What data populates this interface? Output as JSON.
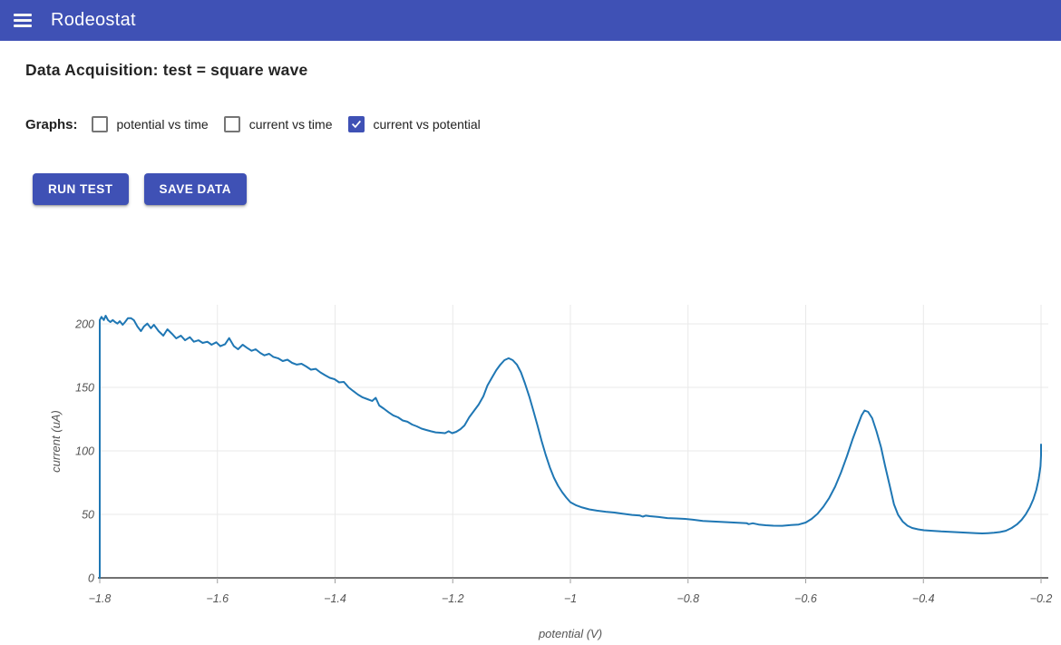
{
  "header": {
    "title": "Rodeostat",
    "menu_icon": "hamburger-menu-icon"
  },
  "page": {
    "heading": "Data Acquisition: test = square wave"
  },
  "graphs": {
    "label": "Graphs:",
    "options": [
      {
        "label": "potential vs time",
        "checked": false
      },
      {
        "label": "current vs time",
        "checked": false
      },
      {
        "label": "current vs potential",
        "checked": true
      }
    ]
  },
  "buttons": {
    "run_test": "RUN TEST",
    "save_data": "SAVE DATA"
  },
  "colors": {
    "primary": "#3f51b5",
    "line": "#1f77b4",
    "grid": "#e9e9e9",
    "axis": "#424242",
    "tick": "#9e9e9e",
    "tick_label": "#545454"
  },
  "chart_data": {
    "type": "line",
    "title": "",
    "xlabel": "potential (V)",
    "ylabel": "current (uA)",
    "xlim": [
      -1.8,
      -0.2
    ],
    "ylim": [
      0,
      215
    ],
    "grid": true,
    "legend": false,
    "x_ticks": [
      -1.8,
      -1.6,
      -1.4,
      -1.2,
      -1.0,
      -0.8,
      -0.6,
      -0.4,
      -0.2
    ],
    "x_tick_labels": [
      "−1.8",
      "−1.6",
      "−1.4",
      "−1.2",
      "−1",
      "−0.8",
      "−0.6",
      "−0.4",
      "−0.2"
    ],
    "y_ticks": [
      0,
      50,
      100,
      150,
      200
    ],
    "y_tick_labels": [
      "0",
      "50",
      "100",
      "150",
      "200"
    ],
    "series": [
      {
        "name": "current vs potential",
        "color": "#1f77b4",
        "points": [
          [
            -1.8,
            0
          ],
          [
            -1.8,
            203
          ],
          [
            -1.797,
            205.5
          ],
          [
            -1.793,
            203
          ],
          [
            -1.79,
            206.4
          ],
          [
            -1.786,
            202.9
          ],
          [
            -1.782,
            201.4
          ],
          [
            -1.778,
            203
          ],
          [
            -1.774,
            201.4
          ],
          [
            -1.77,
            200.2
          ],
          [
            -1.766,
            202.1
          ],
          [
            -1.761,
            199.3
          ],
          [
            -1.757,
            201.4
          ],
          [
            -1.752,
            204.5
          ],
          [
            -1.747,
            204.5
          ],
          [
            -1.742,
            202.9
          ],
          [
            -1.736,
            197.9
          ],
          [
            -1.73,
            194.3
          ],
          [
            -1.725,
            197.9
          ],
          [
            -1.719,
            200.2
          ],
          [
            -1.713,
            196.6
          ],
          [
            -1.708,
            199.3
          ],
          [
            -1.7,
            194.3
          ],
          [
            -1.692,
            190.7
          ],
          [
            -1.685,
            195.7
          ],
          [
            -1.677,
            192.1
          ],
          [
            -1.67,
            188.6
          ],
          [
            -1.662,
            190.7
          ],
          [
            -1.655,
            187.1
          ],
          [
            -1.647,
            189.5
          ],
          [
            -1.64,
            185.9
          ],
          [
            -1.632,
            187.1
          ],
          [
            -1.625,
            185.0
          ],
          [
            -1.617,
            185.9
          ],
          [
            -1.61,
            183.6
          ],
          [
            -1.602,
            185.5
          ],
          [
            -1.595,
            182.4
          ],
          [
            -1.587,
            184.0
          ],
          [
            -1.58,
            188.8
          ],
          [
            -1.572,
            182.4
          ],
          [
            -1.565,
            180.0
          ],
          [
            -1.557,
            183.6
          ],
          [
            -1.55,
            181.2
          ],
          [
            -1.542,
            178.8
          ],
          [
            -1.535,
            180.0
          ],
          [
            -1.527,
            177.1
          ],
          [
            -1.52,
            175.2
          ],
          [
            -1.512,
            176.4
          ],
          [
            -1.505,
            174.0
          ],
          [
            -1.497,
            172.9
          ],
          [
            -1.489,
            170.7
          ],
          [
            -1.481,
            171.8
          ],
          [
            -1.473,
            169.3
          ],
          [
            -1.465,
            167.9
          ],
          [
            -1.457,
            168.6
          ],
          [
            -1.449,
            166.4
          ],
          [
            -1.441,
            163.9
          ],
          [
            -1.433,
            164.6
          ],
          [
            -1.425,
            161.8
          ],
          [
            -1.417,
            159.6
          ],
          [
            -1.409,
            157.5
          ],
          [
            -1.401,
            156.4
          ],
          [
            -1.393,
            153.9
          ],
          [
            -1.385,
            154.3
          ],
          [
            -1.377,
            150.0
          ],
          [
            -1.369,
            147.1
          ],
          [
            -1.361,
            144.3
          ],
          [
            -1.353,
            142.1
          ],
          [
            -1.345,
            140.7
          ],
          [
            -1.337,
            139.3
          ],
          [
            -1.331,
            141.8
          ],
          [
            -1.325,
            135.7
          ],
          [
            -1.317,
            133.2
          ],
          [
            -1.309,
            130.4
          ],
          [
            -1.301,
            127.9
          ],
          [
            -1.293,
            126.4
          ],
          [
            -1.285,
            123.9
          ],
          [
            -1.277,
            122.9
          ],
          [
            -1.269,
            120.7
          ],
          [
            -1.261,
            119.3
          ],
          [
            -1.253,
            117.5
          ],
          [
            -1.245,
            116.4
          ],
          [
            -1.237,
            115.4
          ],
          [
            -1.229,
            114.6
          ],
          [
            -1.221,
            114.3
          ],
          [
            -1.213,
            113.9
          ],
          [
            -1.207,
            115.4
          ],
          [
            -1.201,
            113.9
          ],
          [
            -1.194,
            115.0
          ],
          [
            -1.187,
            117.1
          ],
          [
            -1.18,
            120.0
          ],
          [
            -1.172,
            126.4
          ],
          [
            -1.164,
            131.4
          ],
          [
            -1.156,
            136.4
          ],
          [
            -1.148,
            142.9
          ],
          [
            -1.141,
            151.4
          ],
          [
            -1.133,
            157.9
          ],
          [
            -1.126,
            163.6
          ],
          [
            -1.119,
            167.9
          ],
          [
            -1.112,
            171.4
          ],
          [
            -1.105,
            172.9
          ],
          [
            -1.098,
            171.4
          ],
          [
            -1.091,
            167.9
          ],
          [
            -1.084,
            161.8
          ],
          [
            -1.077,
            152.9
          ],
          [
            -1.07,
            142.9
          ],
          [
            -1.063,
            131.8
          ],
          [
            -1.056,
            120.0
          ],
          [
            -1.049,
            107.9
          ],
          [
            -1.042,
            96.8
          ],
          [
            -1.035,
            87.1
          ],
          [
            -1.028,
            78.9
          ],
          [
            -1.021,
            72.5
          ],
          [
            -1.014,
            67.5
          ],
          [
            -1.007,
            63.2
          ],
          [
            -1.0,
            59.6
          ],
          [
            -0.99,
            57.1
          ],
          [
            -0.98,
            55.4
          ],
          [
            -0.968,
            53.9
          ],
          [
            -0.955,
            52.9
          ],
          [
            -0.94,
            52.1
          ],
          [
            -0.925,
            51.4
          ],
          [
            -0.91,
            50.4
          ],
          [
            -0.895,
            49.6
          ],
          [
            -0.882,
            49.1
          ],
          [
            -0.877,
            48.2
          ],
          [
            -0.872,
            49.0
          ],
          [
            -0.865,
            48.6
          ],
          [
            -0.85,
            47.9
          ],
          [
            -0.835,
            47.1
          ],
          [
            -0.82,
            46.8
          ],
          [
            -0.805,
            46.4
          ],
          [
            -0.79,
            45.7
          ],
          [
            -0.775,
            44.8
          ],
          [
            -0.76,
            44.4
          ],
          [
            -0.745,
            44.1
          ],
          [
            -0.73,
            43.8
          ],
          [
            -0.715,
            43.4
          ],
          [
            -0.7,
            43.0
          ],
          [
            -0.697,
            42.3
          ],
          [
            -0.69,
            43.0
          ],
          [
            -0.68,
            42.0
          ],
          [
            -0.668,
            41.4
          ],
          [
            -0.655,
            41.1
          ],
          [
            -0.64,
            41.0
          ],
          [
            -0.625,
            41.6
          ],
          [
            -0.612,
            42.0
          ],
          [
            -0.6,
            43.6
          ],
          [
            -0.59,
            46.4
          ],
          [
            -0.58,
            50.4
          ],
          [
            -0.57,
            56.1
          ],
          [
            -0.56,
            62.9
          ],
          [
            -0.55,
            71.8
          ],
          [
            -0.54,
            82.9
          ],
          [
            -0.53,
            95.7
          ],
          [
            -0.52,
            109.6
          ],
          [
            -0.512,
            119.6
          ],
          [
            -0.505,
            127.9
          ],
          [
            -0.5,
            131.8
          ],
          [
            -0.494,
            130.7
          ],
          [
            -0.487,
            125.7
          ],
          [
            -0.48,
            115.7
          ],
          [
            -0.472,
            102.9
          ],
          [
            -0.465,
            87.9
          ],
          [
            -0.457,
            72.1
          ],
          [
            -0.45,
            57.9
          ],
          [
            -0.443,
            49.6
          ],
          [
            -0.435,
            44.3
          ],
          [
            -0.427,
            41.1
          ],
          [
            -0.419,
            39.3
          ],
          [
            -0.409,
            38.2
          ],
          [
            -0.399,
            37.5
          ],
          [
            -0.385,
            37.1
          ],
          [
            -0.37,
            36.6
          ],
          [
            -0.355,
            36.3
          ],
          [
            -0.34,
            35.9
          ],
          [
            -0.325,
            35.5
          ],
          [
            -0.31,
            35.2
          ],
          [
            -0.3,
            35.0
          ],
          [
            -0.29,
            35.2
          ],
          [
            -0.28,
            35.5
          ],
          [
            -0.27,
            36.1
          ],
          [
            -0.26,
            37.1
          ],
          [
            -0.25,
            39.3
          ],
          [
            -0.241,
            42.1
          ],
          [
            -0.233,
            45.7
          ],
          [
            -0.226,
            50.0
          ],
          [
            -0.219,
            55.7
          ],
          [
            -0.213,
            62.1
          ],
          [
            -0.208,
            69.3
          ],
          [
            -0.204,
            77.9
          ],
          [
            -0.201,
            87.9
          ],
          [
            -0.2,
            96.4
          ],
          [
            -0.2,
            105.0
          ]
        ]
      }
    ]
  }
}
